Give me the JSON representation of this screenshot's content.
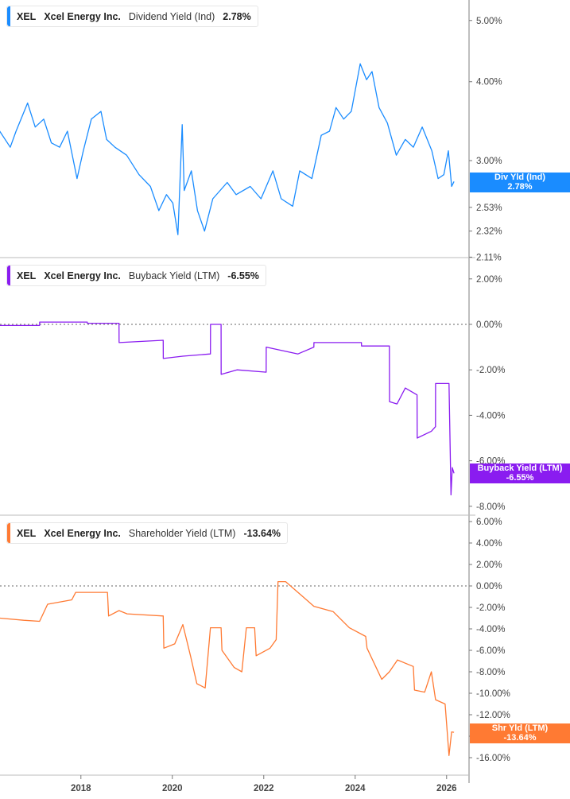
{
  "chart_data": [
    {
      "type": "line",
      "ticker": "XEL",
      "company": "Xcel Energy Inc.",
      "metric": "Dividend Yield (Ind)",
      "current_value": "2.78%",
      "badge_label": "Div Yld (Ind)",
      "badge_value": "2.78%",
      "color": "#1a8cff",
      "y_scale": "log",
      "ylim": [
        2.11,
        5.3
      ],
      "y_ticks": [
        "5.00%",
        "4.00%",
        "3.00%",
        "2.53%",
        "2.32%",
        "2.11%"
      ],
      "y_tick_values": [
        5.0,
        4.0,
        3.0,
        2.53,
        2.32,
        2.11
      ],
      "points": [
        [
          "2016-03-01",
          3.39
        ],
        [
          "2016-06-15",
          3.15
        ],
        [
          "2016-08-01",
          3.34
        ],
        [
          "2016-11-01",
          3.7
        ],
        [
          "2017-01-01",
          3.39
        ],
        [
          "2017-03-10",
          3.49
        ],
        [
          "2017-05-10",
          3.2
        ],
        [
          "2017-07-15",
          3.15
        ],
        [
          "2017-09-15",
          3.34
        ],
        [
          "2017-12-01",
          2.81
        ],
        [
          "2018-01-20",
          3.11
        ],
        [
          "2018-03-25",
          3.49
        ],
        [
          "2018-06-10",
          3.59
        ],
        [
          "2018-07-25",
          3.24
        ],
        [
          "2018-09-30",
          3.15
        ],
        [
          "2019-01-01",
          3.06
        ],
        [
          "2019-04-10",
          2.85
        ],
        [
          "2019-07-10",
          2.73
        ],
        [
          "2019-09-15",
          2.5
        ],
        [
          "2019-11-15",
          2.65
        ],
        [
          "2020-01-05",
          2.57
        ],
        [
          "2020-02-15",
          2.29
        ],
        [
          "2020-03-20",
          3.42
        ],
        [
          "2020-04-05",
          2.69
        ],
        [
          "2020-06-01",
          2.89
        ],
        [
          "2020-07-20",
          2.5
        ],
        [
          "2020-09-15",
          2.32
        ],
        [
          "2020-11-20",
          2.61
        ],
        [
          "2021-03-15",
          2.77
        ],
        [
          "2021-05-25",
          2.65
        ],
        [
          "2021-09-15",
          2.73
        ],
        [
          "2021-12-10",
          2.61
        ],
        [
          "2022-03-15",
          2.89
        ],
        [
          "2022-05-20",
          2.61
        ],
        [
          "2022-08-20",
          2.54
        ],
        [
          "2022-10-15",
          2.89
        ],
        [
          "2023-01-20",
          2.81
        ],
        [
          "2023-04-05",
          3.29
        ],
        [
          "2023-06-10",
          3.34
        ],
        [
          "2023-08-01",
          3.64
        ],
        [
          "2023-10-01",
          3.49
        ],
        [
          "2023-12-01",
          3.59
        ],
        [
          "2024-02-10",
          4.27
        ],
        [
          "2024-04-01",
          4.03
        ],
        [
          "2024-05-15",
          4.15
        ],
        [
          "2024-07-10",
          3.64
        ],
        [
          "2024-09-15",
          3.44
        ],
        [
          "2024-11-25",
          3.06
        ],
        [
          "2025-02-05",
          3.24
        ],
        [
          "2025-04-10",
          3.15
        ],
        [
          "2025-06-20",
          3.39
        ],
        [
          "2025-09-05",
          3.11
        ],
        [
          "2025-10-25",
          2.81
        ],
        [
          "2025-12-10",
          2.85
        ],
        [
          "2026-01-15",
          3.11
        ],
        [
          "2026-02-10",
          2.73
        ],
        [
          "2026-03-01",
          2.78
        ]
      ]
    },
    {
      "type": "line",
      "ticker": "XEL",
      "company": "Xcel Energy Inc.",
      "metric": "Buyback Yield (LTM)",
      "current_value": "-6.55%",
      "badge_label": "Buyback Yield (LTM)",
      "badge_value": "-6.55%",
      "color": "#8a1cf0",
      "y_scale": "linear",
      "ylim": [
        -8.6,
        2.6
      ],
      "y_ticks": [
        "2.00%",
        "0.00%",
        "-2.00%",
        "-4.00%",
        "-6.00%",
        "-8.00%"
      ],
      "y_tick_values": [
        2,
        0,
        -2,
        -4,
        -6,
        -8
      ],
      "zero_line": true,
      "points": [
        [
          "2016-03-25",
          -0.05
        ],
        [
          "2017-02-05",
          -0.05
        ],
        [
          "2017-02-06",
          0.1
        ],
        [
          "2018-02-20",
          0.1
        ],
        [
          "2018-02-21",
          0.05
        ],
        [
          "2018-11-01",
          0.05
        ],
        [
          "2018-11-02",
          -0.8
        ],
        [
          "2019-10-20",
          -0.7
        ],
        [
          "2019-10-21",
          -1.5
        ],
        [
          "2020-03-25",
          -1.4
        ],
        [
          "2020-11-01",
          -1.3
        ],
        [
          "2020-11-02",
          0.0
        ],
        [
          "2021-01-25",
          0.0
        ],
        [
          "2021-01-26",
          -2.2
        ],
        [
          "2021-06-01",
          -2.0
        ],
        [
          "2022-01-20",
          -2.1
        ],
        [
          "2022-01-21",
          -1.0
        ],
        [
          "2022-10-01",
          -1.3
        ],
        [
          "2023-02-05",
          -1.0
        ],
        [
          "2023-02-06",
          -0.8
        ],
        [
          "2024-02-20",
          -0.8
        ],
        [
          "2024-02-21",
          -0.95
        ],
        [
          "2024-10-01",
          -0.95
        ],
        [
          "2024-10-02",
          -3.4
        ],
        [
          "2024-12-01",
          -3.5
        ],
        [
          "2025-02-05",
          -2.8
        ],
        [
          "2025-05-10",
          -3.1
        ],
        [
          "2025-05-11",
          -5.0
        ],
        [
          "2025-09-01",
          -4.7
        ],
        [
          "2025-10-04",
          -4.5
        ],
        [
          "2025-10-05",
          -2.6
        ],
        [
          "2026-01-20",
          -2.6
        ],
        [
          "2026-02-05",
          -7.5
        ],
        [
          "2026-02-15",
          -6.3
        ],
        [
          "2026-03-01",
          -6.55
        ]
      ]
    },
    {
      "type": "line",
      "ticker": "XEL",
      "company": "Xcel Energy Inc.",
      "metric": "Shareholder Yield (LTM)",
      "current_value": "-13.64%",
      "badge_label": "Shr Yld (LTM)",
      "badge_value": "-13.64%",
      "color": "#ff7a33",
      "y_scale": "linear",
      "ylim": [
        -17.5,
        7.0
      ],
      "y_ticks": [
        "6.00%",
        "4.00%",
        "2.00%",
        "0.00%",
        "-2.00%",
        "-4.00%",
        "-6.00%",
        "-8.00%",
        "-10.00%",
        "-12.00%",
        "-14.00%",
        "-16.00%"
      ],
      "y_tick_values": [
        6,
        4,
        2,
        0,
        -2,
        -4,
        -6,
        -8,
        -10,
        -12,
        -14,
        -16
      ],
      "zero_line": true,
      "points": [
        [
          "2016-03-25",
          -3.0
        ],
        [
          "2016-10-01",
          -3.2
        ],
        [
          "2017-02-05",
          -3.3
        ],
        [
          "2017-04-10",
          -1.7
        ],
        [
          "2017-10-20",
          -1.3
        ],
        [
          "2017-11-20",
          -0.6
        ],
        [
          "2018-08-01",
          -0.6
        ],
        [
          "2018-08-10",
          -2.8
        ],
        [
          "2018-11-01",
          -2.3
        ],
        [
          "2019-01-05",
          -2.6
        ],
        [
          "2019-10-20",
          -2.8
        ],
        [
          "2019-10-25",
          -5.8
        ],
        [
          "2020-01-20",
          -5.4
        ],
        [
          "2020-03-25",
          -3.6
        ],
        [
          "2020-05-25",
          -6.5
        ],
        [
          "2020-07-15",
          -9.1
        ],
        [
          "2020-09-20",
          -9.5
        ],
        [
          "2020-11-01",
          -3.9
        ],
        [
          "2021-01-25",
          -3.9
        ],
        [
          "2021-02-01",
          -6.0
        ],
        [
          "2021-05-10",
          -7.6
        ],
        [
          "2021-07-10",
          -8.0
        ],
        [
          "2021-08-15",
          -3.9
        ],
        [
          "2021-10-20",
          -3.9
        ],
        [
          "2021-11-01",
          -6.5
        ],
        [
          "2022-02-20",
          -5.8
        ],
        [
          "2022-04-10",
          -5.0
        ],
        [
          "2022-04-25",
          0.4
        ],
        [
          "2022-06-25",
          0.4
        ],
        [
          "2022-10-01",
          -0.6
        ],
        [
          "2023-02-05",
          -1.9
        ],
        [
          "2023-07-10",
          -2.4
        ],
        [
          "2023-11-15",
          -3.9
        ],
        [
          "2024-03-25",
          -4.7
        ],
        [
          "2024-04-05",
          -5.8
        ],
        [
          "2024-08-01",
          -8.7
        ],
        [
          "2024-10-01",
          -8.0
        ],
        [
          "2024-12-05",
          -6.9
        ],
        [
          "2025-04-10",
          -7.5
        ],
        [
          "2025-04-20",
          -9.7
        ],
        [
          "2025-07-10",
          -9.9
        ],
        [
          "2025-09-01",
          -8.0
        ],
        [
          "2025-10-05",
          -10.6
        ],
        [
          "2025-12-20",
          -11.0
        ],
        [
          "2026-01-20",
          -15.8
        ],
        [
          "2026-02-10",
          -13.6
        ],
        [
          "2026-03-01",
          -13.64
        ]
      ]
    }
  ],
  "x_axis": {
    "type": "date",
    "ticks": [
      "2018",
      "2020",
      "2022",
      "2024",
      "2026"
    ],
    "xlim": [
      "2016-03-25",
      "2026-05-01"
    ]
  }
}
